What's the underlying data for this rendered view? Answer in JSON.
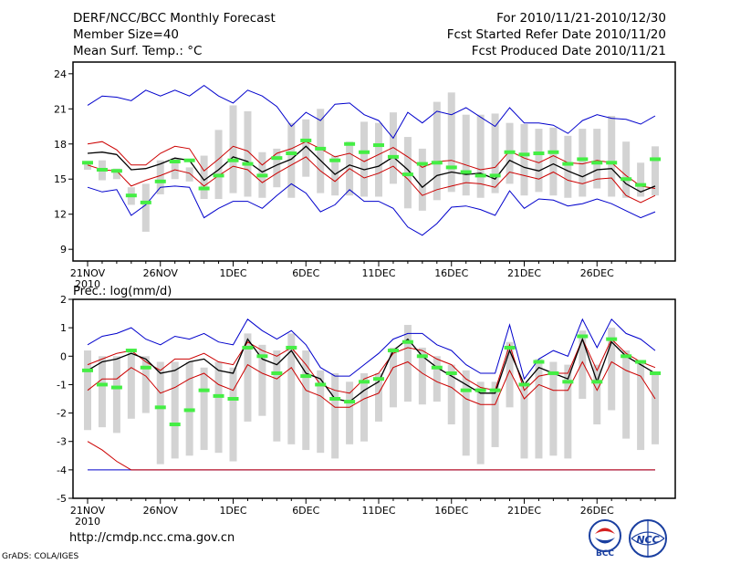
{
  "header": {
    "title": "DERF/NCC/BCC Monthly Forecast",
    "member_size": "Member Size=40",
    "variable": "Mean Surf. Temp.: °C",
    "period": "For 2010/11/21-2010/12/30",
    "started": "Fcst Started Refer Date 2010/11/20",
    "produced": "Fcst Produced Date 2010/11/21"
  },
  "footer": {
    "url": "http://cmdp.ncc.cma.gov.cn",
    "credit": "GrADS: COLA/IGES",
    "logos": [
      "BCC",
      "NCC"
    ]
  },
  "colors": {
    "max_min": "#0000cc",
    "spread": "#cc0000",
    "mean": "#000000",
    "box": "#d3d3d3",
    "median": "#44ee44"
  },
  "chart_data": [
    {
      "type": "box-ensemble",
      "title": "Mean Surf. Temp.: °C",
      "ylim": [
        8,
        25
      ],
      "yticks": [
        9,
        12,
        15,
        18,
        21,
        24
      ],
      "x_tick_labels": [
        "21NOV",
        "26NOV",
        "1DEC",
        "6DEC",
        "11DEC",
        "16DEC",
        "21DEC",
        "26DEC"
      ],
      "x_year_label": "2010",
      "days": 40,
      "series": [
        {
          "name": "max",
          "color": "#0000cc",
          "values": [
            21.3,
            22.1,
            22.0,
            21.7,
            22.6,
            22.1,
            22.6,
            22.1,
            23.0,
            22.1,
            21.5,
            22.6,
            22.1,
            21.2,
            19.5,
            20.7,
            20.0,
            21.4,
            21.5,
            20.5,
            20.0,
            18.5,
            20.7,
            19.8,
            20.8,
            20.5,
            21.1,
            20.3,
            19.5,
            21.1,
            19.8,
            19.8,
            19.6,
            18.9,
            20.0,
            20.5,
            20.2,
            20.1,
            19.7,
            20.4
          ]
        },
        {
          "name": "upper",
          "color": "#cc0000",
          "values": [
            18.0,
            18.2,
            17.5,
            16.2,
            16.2,
            17.2,
            17.8,
            17.6,
            15.7,
            16.7,
            17.8,
            17.4,
            16.2,
            17.2,
            17.6,
            18.2,
            17.6,
            16.9,
            17.2,
            16.5,
            17.1,
            17.7,
            16.9,
            16.0,
            16.5,
            16.6,
            16.2,
            15.8,
            16.0,
            17.4,
            16.8,
            16.4,
            17.0,
            16.4,
            16.3,
            16.6,
            16.4,
            15.3,
            14.4,
            14.2
          ]
        },
        {
          "name": "mean",
          "color": "#000000",
          "values": [
            17.2,
            17.3,
            17.1,
            15.8,
            15.9,
            16.3,
            16.8,
            16.6,
            14.9,
            15.8,
            16.9,
            16.5,
            15.6,
            16.2,
            16.7,
            17.8,
            16.6,
            15.4,
            16.2,
            15.8,
            16.1,
            16.9,
            15.8,
            14.3,
            15.3,
            15.6,
            15.4,
            15.5,
            15.0,
            16.6,
            16.0,
            15.7,
            16.3,
            15.7,
            15.2,
            15.8,
            15.9,
            14.6,
            13.9,
            14.4
          ]
        },
        {
          "name": "lower",
          "color": "#cc0000",
          "values": [
            16.2,
            15.8,
            15.7,
            14.4,
            14.9,
            15.3,
            15.8,
            15.5,
            14.4,
            15.3,
            16.1,
            15.8,
            14.7,
            15.5,
            16.2,
            16.9,
            15.7,
            14.8,
            15.9,
            15.1,
            15.5,
            16.1,
            15.0,
            13.6,
            14.1,
            14.4,
            14.7,
            14.6,
            14.3,
            15.6,
            15.3,
            15.0,
            15.6,
            14.9,
            14.6,
            15.0,
            15.1,
            13.6,
            13.0,
            13.6
          ]
        },
        {
          "name": "min",
          "color": "#0000cc",
          "values": [
            14.3,
            13.9,
            14.1,
            11.9,
            12.8,
            14.3,
            14.4,
            14.3,
            11.7,
            12.5,
            13.1,
            13.1,
            12.5,
            13.6,
            14.6,
            13.8,
            12.2,
            12.8,
            14.1,
            13.1,
            13.1,
            12.5,
            10.9,
            10.2,
            11.2,
            12.6,
            12.7,
            12.4,
            11.9,
            14.0,
            12.5,
            13.3,
            13.2,
            12.7,
            12.9,
            13.3,
            12.9,
            12.3,
            11.7,
            12.2
          ]
        }
      ],
      "box": {
        "name": "ensemble spread",
        "color": "#d3d3d3",
        "low": [
          15.8,
          14.9,
          15.0,
          12.8,
          10.5,
          13.7,
          15.0,
          14.8,
          13.3,
          13.3,
          13.8,
          13.5,
          13.4,
          14.3,
          13.4,
          15.2,
          13.8,
          13.6,
          13.6,
          13.5,
          13.5,
          14.6,
          12.5,
          12.3,
          13.2,
          13.9,
          13.6,
          13.4,
          13.8,
          14.6,
          13.6,
          13.9,
          13.6,
          13.4,
          13.5,
          14.2,
          13.5,
          13.4,
          13.5,
          13.6
        ],
        "high": [
          16.4,
          16.6,
          15.9,
          14.3,
          14.6,
          16.6,
          16.8,
          16.0,
          17.0,
          19.2,
          21.3,
          20.8,
          17.3,
          17.6,
          19.8,
          20.1,
          21.0,
          17.0,
          18.2,
          19.9,
          19.8,
          20.7,
          18.6,
          17.6,
          21.6,
          22.4,
          20.5,
          20.5,
          20.6,
          19.8,
          19.7,
          19.3,
          19.4,
          18.7,
          19.3,
          19.3,
          20.4,
          18.2,
          16.4,
          17.8
        ],
        "median": [
          16.4,
          15.8,
          15.7,
          13.6,
          13.0,
          14.8,
          16.5,
          16.6,
          14.2,
          15.3,
          16.6,
          16.3,
          15.3,
          16.8,
          17.2,
          18.3,
          17.6,
          16.6,
          18.0,
          17.3,
          17.9,
          16.9,
          15.4,
          16.3,
          16.4,
          16.0,
          15.6,
          15.3,
          15.3,
          17.3,
          17.1,
          17.2,
          17.3,
          16.3,
          16.7,
          16.4,
          16.4,
          15.0,
          14.5,
          16.7
        ]
      }
    },
    {
      "type": "box-ensemble",
      "title": "Prec.: log(mm/d)",
      "ylim": [
        -5,
        2
      ],
      "yticks": [
        -5,
        -4,
        -3,
        -2,
        -1,
        0,
        1,
        2
      ],
      "x_tick_labels": [
        "21NOV",
        "26NOV",
        "1DEC",
        "6DEC",
        "11DEC",
        "16DEC",
        "21DEC",
        "26DEC"
      ],
      "x_year_label": "2010",
      "days": 40,
      "series": [
        {
          "name": "max",
          "color": "#0000cc",
          "values": [
            0.4,
            0.7,
            0.8,
            1.0,
            0.6,
            0.4,
            0.7,
            0.6,
            0.8,
            0.5,
            0.4,
            1.3,
            0.9,
            0.6,
            0.9,
            0.4,
            -0.4,
            -0.7,
            -0.7,
            -0.3,
            0.1,
            0.6,
            0.8,
            0.8,
            0.4,
            0.2,
            -0.3,
            -0.6,
            -0.6,
            1.1,
            -0.8,
            -0.1,
            0.2,
            0.0,
            1.3,
            0.3,
            1.3,
            0.8,
            0.6,
            0.2
          ]
        },
        {
          "name": "upper",
          "color": "#cc0000",
          "values": [
            -0.3,
            -0.1,
            0.1,
            0.2,
            -0.2,
            -0.5,
            -0.1,
            -0.1,
            0.1,
            -0.2,
            -0.3,
            0.5,
            0.2,
            0.0,
            0.3,
            -0.3,
            -1.0,
            -1.2,
            -1.3,
            -0.8,
            -0.6,
            0.1,
            0.3,
            0.2,
            -0.1,
            -0.3,
            -0.8,
            -1.1,
            -1.2,
            0.4,
            -1.2,
            -0.7,
            -0.6,
            -0.6,
            0.6,
            -0.5,
            0.6,
            0.1,
            -0.2,
            -0.4
          ]
        },
        {
          "name": "mean",
          "color": "#000000",
          "values": [
            -0.5,
            -0.2,
            -0.1,
            0.1,
            -0.1,
            -0.6,
            -0.5,
            -0.2,
            -0.1,
            -0.5,
            -0.6,
            0.6,
            -0.1,
            -0.3,
            0.2,
            -0.6,
            -0.8,
            -1.5,
            -1.6,
            -1.2,
            -0.9,
            0.2,
            0.6,
            0.0,
            -0.4,
            -0.7,
            -1.0,
            -1.3,
            -1.3,
            0.2,
            -1.0,
            -0.4,
            -0.6,
            -0.8,
            0.6,
            -0.9,
            0.5,
            0.0,
            -0.3,
            -0.6
          ]
        },
        {
          "name": "lower",
          "color": "#cc0000",
          "values": [
            -1.2,
            -0.8,
            -0.8,
            -0.4,
            -0.7,
            -1.3,
            -1.1,
            -0.8,
            -0.6,
            -1.0,
            -1.2,
            -0.3,
            -0.6,
            -0.8,
            -0.4,
            -1.2,
            -1.4,
            -1.8,
            -1.8,
            -1.5,
            -1.3,
            -0.4,
            -0.2,
            -0.6,
            -0.9,
            -1.1,
            -1.5,
            -1.7,
            -1.7,
            -0.5,
            -1.5,
            -1.0,
            -1.2,
            -1.2,
            -0.2,
            -1.2,
            -0.2,
            -0.5,
            -0.7,
            -1.5
          ]
        },
        {
          "name": "min",
          "color": "#0000cc",
          "values": [
            -4.0,
            -4.0,
            -4.0,
            -4.0,
            -4.0,
            -4.0,
            -4.0,
            -4.0,
            -4.0,
            -4.0,
            -4.0,
            -4.0,
            -4.0,
            -4.0,
            -4.0,
            -4.0,
            -4.0,
            -4.0,
            -4.0,
            -4.0,
            -4.0,
            -4.0,
            -4.0,
            -4.0,
            -4.0,
            -4.0,
            -4.0,
            -4.0,
            -4.0,
            -4.0,
            -4.0,
            -4.0,
            -4.0,
            -4.0,
            -4.0,
            -4.0,
            -4.0,
            -4.0,
            -4.0,
            -4.0
          ]
        },
        {
          "name": "dry-tail",
          "color": "#cc0000",
          "values": [
            -3.0,
            -3.3,
            -3.7,
            -4.0,
            -4.0,
            -4.0,
            -4.0,
            -4.0,
            -4.0,
            -4.0,
            -4.0,
            -4.0,
            -4.0,
            -4.0,
            -4.0,
            -4.0,
            -4.0,
            -4.0,
            -4.0,
            -4.0,
            -4.0,
            -4.0,
            -4.0,
            -4.0,
            -4.0,
            -4.0,
            -4.0,
            -4.0,
            -4.0,
            -4.0,
            -4.0,
            -4.0,
            -4.0,
            -4.0,
            -4.0,
            -4.0,
            -4.0,
            -4.0,
            -4.0,
            -4.0
          ]
        }
      ],
      "box": {
        "name": "ensemble spread",
        "color": "#d3d3d3",
        "low": [
          -2.6,
          -2.5,
          -2.7,
          -2.2,
          -2.0,
          -3.8,
          -3.6,
          -3.5,
          -3.3,
          -3.4,
          -3.7,
          -2.3,
          -2.1,
          -3.0,
          -3.1,
          -3.3,
          -3.4,
          -3.6,
          -3.1,
          -3.0,
          -2.3,
          -1.8,
          -1.6,
          -1.7,
          -1.6,
          -2.4,
          -3.5,
          -3.8,
          -3.2,
          -1.8,
          -3.6,
          -3.6,
          -3.5,
          -3.6,
          -1.5,
          -2.4,
          -1.9,
          -2.9,
          -3.3,
          -3.1
        ],
        "high": [
          0.2,
          0.0,
          0.0,
          0.2,
          0.0,
          -0.2,
          -0.2,
          -0.2,
          -0.4,
          -0.2,
          -0.4,
          0.8,
          0.4,
          0.2,
          0.8,
          0.2,
          -0.5,
          -0.6,
          -0.9,
          -0.6,
          -0.6,
          0.3,
          1.1,
          0.3,
          0.0,
          -0.3,
          -0.5,
          -0.9,
          -0.9,
          0.5,
          -1.0,
          -0.1,
          -0.2,
          -0.3,
          0.9,
          -0.3,
          1.0,
          0.2,
          -0.2,
          -0.6
        ],
        "median": [
          -0.5,
          -1.0,
          -1.1,
          0.2,
          -0.4,
          -1.8,
          -2.4,
          -1.9,
          -1.2,
          -1.4,
          -1.5,
          0.3,
          0.0,
          -0.6,
          0.3,
          -0.7,
          -1.0,
          -1.5,
          -1.6,
          -0.9,
          -0.8,
          0.2,
          0.5,
          0.0,
          -0.4,
          -0.6,
          -1.2,
          -1.2,
          -1.2,
          0.3,
          -1.0,
          -0.2,
          -0.6,
          -0.9,
          0.7,
          -0.9,
          0.6,
          0.0,
          -0.2,
          -0.6
        ]
      }
    }
  ]
}
